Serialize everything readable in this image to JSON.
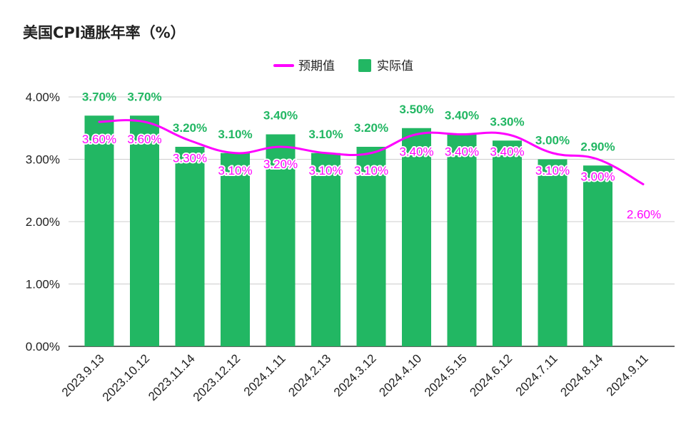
{
  "chart_data": {
    "type": "bar",
    "title": "美国CPI通胀年率（%）",
    "categories": [
      "2023.9.13",
      "2023.10.12",
      "2023.11.14",
      "2023.12.12",
      "2024.1.11",
      "2024.2.13",
      "2024.3.12",
      "2024.4.10",
      "2024.5.15",
      "2024.6.12",
      "2024.7.11",
      "2024.8.14",
      "2024.9.11"
    ],
    "series": [
      {
        "name": "预期值",
        "render": "line",
        "color": "#ff00ff",
        "values": [
          3.6,
          3.6,
          3.3,
          3.1,
          3.2,
          3.1,
          3.1,
          3.4,
          3.4,
          3.4,
          3.1,
          3.0,
          2.6
        ],
        "labels": [
          "3.60%",
          "3.60%",
          "3.30%",
          "3.10%",
          "3.20%",
          "3.10%",
          "3.10%",
          "3.40%",
          "3.40%",
          "3.40%",
          "3.10%",
          "3.00%",
          "2.60%"
        ]
      },
      {
        "name": "实际值",
        "render": "bar",
        "color": "#22b763",
        "values": [
          3.7,
          3.7,
          3.2,
          3.1,
          3.4,
          3.1,
          3.2,
          3.5,
          3.4,
          3.3,
          3.0,
          2.9,
          null
        ],
        "labels": [
          "3.70%",
          "3.70%",
          "3.20%",
          "3.10%",
          "3.40%",
          "3.10%",
          "3.20%",
          "3.50%",
          "3.40%",
          "3.30%",
          "3.00%",
          "2.90%",
          ""
        ]
      }
    ],
    "ylim": [
      0,
      4
    ],
    "y_ticks": [
      0,
      1,
      2,
      3,
      4
    ],
    "y_tick_labels": [
      "0.00%",
      "1.00%",
      "2.00%",
      "3.00%",
      "4.00%"
    ],
    "grid": true,
    "legend_position": "top-center",
    "gridline_color": "#cccccc",
    "axis_color": "#333333"
  }
}
